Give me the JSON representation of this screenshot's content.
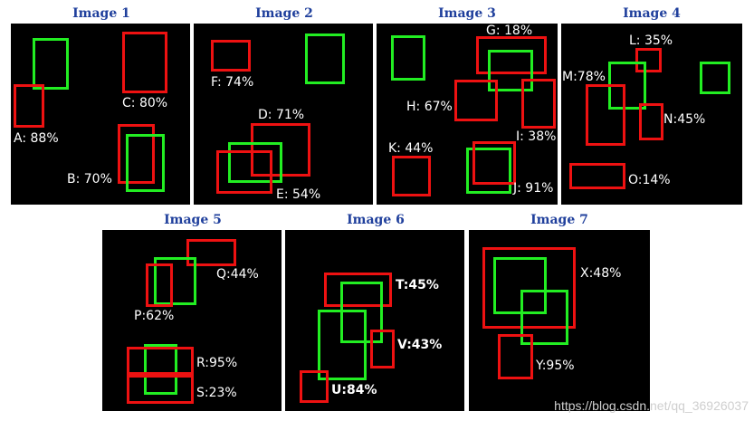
{
  "colors": {
    "detection_box": "#ee1111",
    "ground_truth_box": "#22ee22",
    "title_text": "#1f3f9c"
  },
  "panels": [
    {
      "title": "Image 1",
      "labels": [
        "A: 88%",
        "B: 70%",
        "C: 80%"
      ]
    },
    {
      "title": "Image 2",
      "labels": [
        "D: 71%",
        "E: 54%",
        "F: 74%"
      ]
    },
    {
      "title": "Image 3",
      "labels": [
        "G: 18%",
        "H: 67%",
        "I: 38%",
        "J: 91%",
        "K: 44%"
      ]
    },
    {
      "title": "Image 4",
      "labels": [
        "L: 35%",
        "M:78%",
        "N:45%",
        "O:14%"
      ]
    },
    {
      "title": "Image 5",
      "labels": [
        "P:62%",
        "Q:44%",
        "R:95%",
        "S:23%"
      ]
    },
    {
      "title": "Image 6",
      "labels": [
        "T:45%",
        "U:84%",
        "V:43%"
      ]
    },
    {
      "title": "Image 7",
      "labels": [
        "X:48%",
        "Y:95%"
      ]
    }
  ],
  "watermark": "https://blog.csdn.net/qq_36926037"
}
